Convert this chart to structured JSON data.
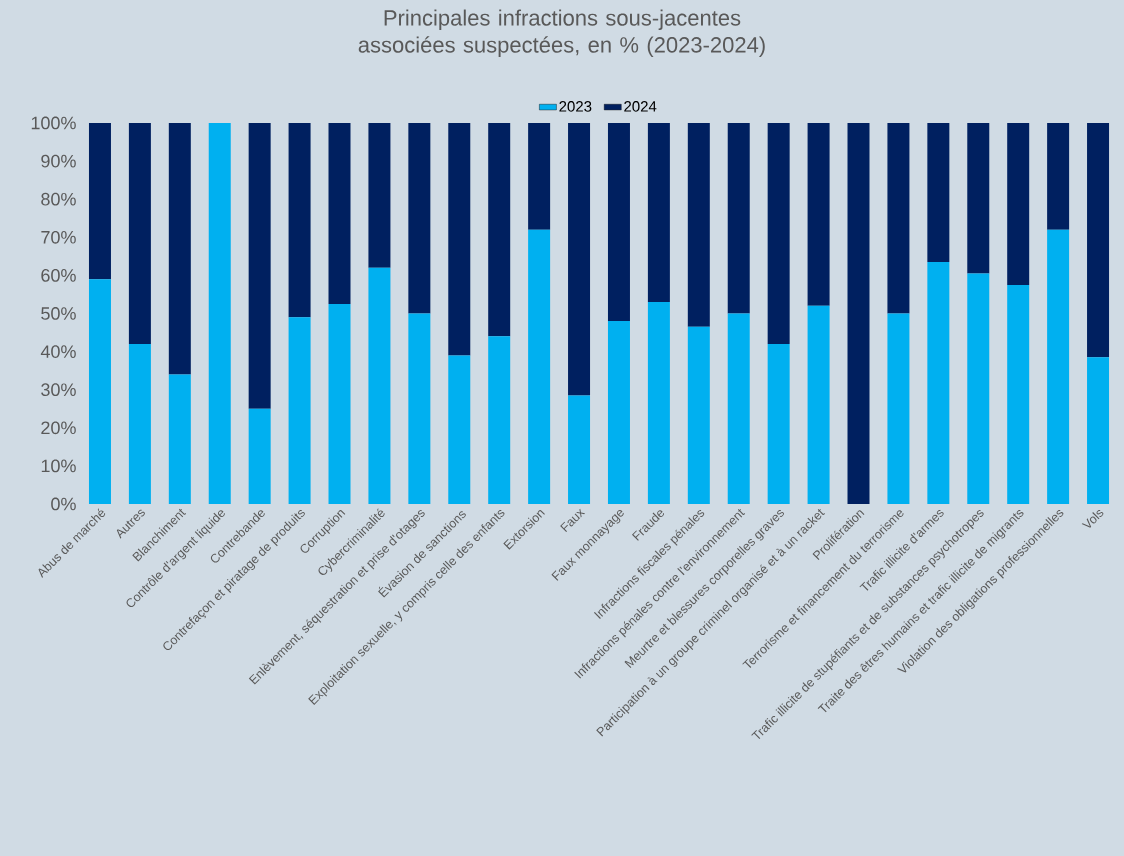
{
  "chart_data": {
    "type": "bar",
    "stacked": true,
    "title": "Principales infractions sous-jacentes associées suspectées, en % (2023-2024)",
    "categories": [
      "Abus de marché",
      "Autres",
      "Blanchiment",
      "Contrôle d'argent liquide",
      "Contrebande",
      "Contrefaçon et piratage de produits",
      "Corruption",
      "Cybercriminalité",
      "Enlèvement, séquestration et prise d'otages",
      "Évasion de sanctions",
      "Exploitation sexuelle, y compris celle des enfants",
      "Extorsion",
      "Faux",
      "Faux monnayage",
      "Fraude",
      "Infractions fiscales pénales",
      "Infractions pénales contre l'environnement",
      "Meurtre et blessures corporelles graves",
      "Participation à un groupe criminel organisé et à un racket",
      "Prolifération",
      "Terrorisme et financement du terrorisme",
      "Trafic illicite d'armes",
      "Trafic illicite de stupéfiants et de substances psychotropes",
      "Traite des êtres humains et trafic illicite de migrants",
      "Violation des obligations professionnelles",
      "Vols"
    ],
    "series": [
      {
        "name": "2023",
        "color": "#00b0f0",
        "values": [
          59,
          42,
          34,
          100,
          25,
          49,
          52.5,
          62,
          50,
          39,
          44,
          72,
          28.5,
          48,
          53,
          46.5,
          50,
          42,
          52,
          0,
          50,
          63.5,
          60.5,
          57.5,
          72,
          38.5
        ]
      },
      {
        "name": "2024",
        "color": "#002060",
        "values": [
          41,
          58,
          66,
          0,
          75,
          51,
          47.5,
          38,
          50,
          61,
          56,
          28,
          71.5,
          52,
          47,
          53.5,
          50,
          58,
          48,
          100,
          50,
          36.5,
          39.5,
          42.5,
          28,
          61.5
        ]
      }
    ],
    "ylim": [
      0,
      100
    ],
    "yticks": [
      {
        "value": 0,
        "label": "0%"
      },
      {
        "value": 10,
        "label": "10%"
      },
      {
        "value": 20,
        "label": "20%"
      },
      {
        "value": 30,
        "label": "30%"
      },
      {
        "value": 40,
        "label": "40%"
      },
      {
        "value": 50,
        "label": "50%"
      },
      {
        "value": 60,
        "label": "60%"
      },
      {
        "value": 70,
        "label": "70%"
      },
      {
        "value": 80,
        "label": "80%"
      },
      {
        "value": 90,
        "label": "90%"
      },
      {
        "value": 100,
        "label": "100%"
      }
    ],
    "legend": "top"
  }
}
